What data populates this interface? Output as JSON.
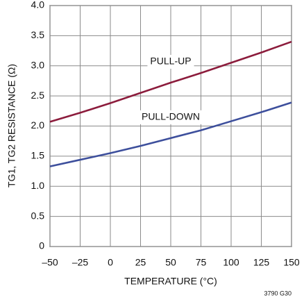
{
  "chart_data": {
    "type": "line",
    "x": [
      -50,
      -25,
      0,
      25,
      50,
      75,
      100,
      125,
      150
    ],
    "series": [
      {
        "name": "PULL-UP",
        "color": "#8c1c3c",
        "values": [
          2.07,
          2.22,
          2.38,
          2.55,
          2.72,
          2.88,
          3.05,
          3.22,
          3.4
        ]
      },
      {
        "name": "PULL-DOWN",
        "color": "#3d4f9c",
        "values": [
          1.33,
          1.44,
          1.55,
          1.67,
          1.8,
          1.93,
          2.08,
          2.23,
          2.39
        ]
      }
    ],
    "xlim": [
      -50,
      150
    ],
    "xticks": [
      {
        "value": -50,
        "label": "–50"
      },
      {
        "value": -25,
        "label": "–25"
      },
      0,
      25,
      50,
      75,
      100,
      125,
      150
    ],
    "ylim": [
      0,
      4
    ],
    "yticks": [
      0,
      0.5,
      {
        "value": 1,
        "label": "1.0"
      },
      1.5,
      {
        "value": 2,
        "label": "2.0"
      },
      2.5,
      {
        "value": 3,
        "label": "3.0"
      },
      3.5,
      {
        "value": 4,
        "label": "4.0"
      }
    ],
    "xlabel": "TEMPERATURE (°C)",
    "ylabel": "TG1, TG2 RESISTANCE (Ω)",
    "note": "3790 G30",
    "grid": true
  }
}
